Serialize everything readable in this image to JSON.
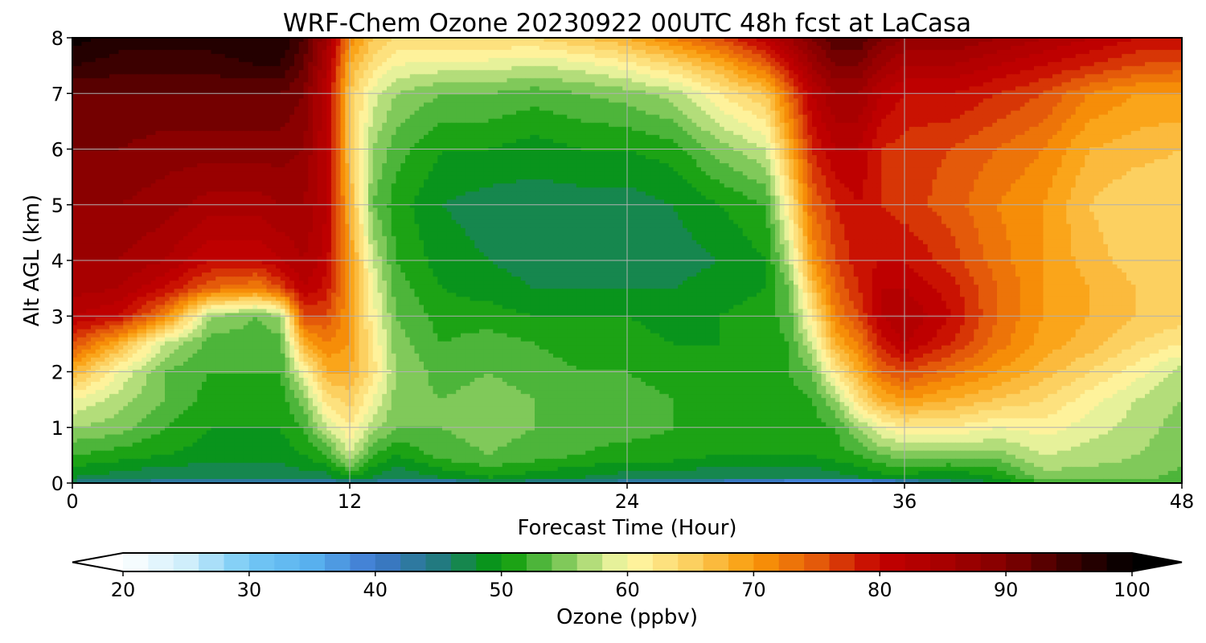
{
  "chart_data": {
    "type": "heatmap",
    "subtype": "filled-contour time-height cross-section",
    "title": "WRF-Chem Ozone  20230922 00UTC 48h fcst at LaCasa",
    "xlabel": "Forecast Time (Hour)",
    "ylabel": "Alt AGL (km)",
    "xlim": [
      0,
      48
    ],
    "ylim": [
      0,
      8
    ],
    "xticks": [
      0,
      12,
      24,
      36,
      48
    ],
    "yticks": [
      0,
      1,
      2,
      3,
      4,
      5,
      6,
      7,
      8
    ],
    "grid": true,
    "colorbar": {
      "label": "Ozone  (ppbv)",
      "orientation": "horizontal",
      "placement": "bottom",
      "range": [
        20,
        100
      ],
      "ticks": [
        20,
        30,
        40,
        50,
        60,
        70,
        80,
        90,
        100
      ],
      "extend": "both",
      "color_stops": [
        {
          "value": 20,
          "color": "#ffffff"
        },
        {
          "value": 25,
          "color": "#cfeefb"
        },
        {
          "value": 30,
          "color": "#73c8f5"
        },
        {
          "value": 35,
          "color": "#58b0ee"
        },
        {
          "value": 40,
          "color": "#3f78d0"
        },
        {
          "value": 45,
          "color": "#227a80"
        },
        {
          "value": 50,
          "color": "#039a03"
        },
        {
          "value": 53,
          "color": "#4db53a"
        },
        {
          "value": 56,
          "color": "#99d36a"
        },
        {
          "value": 60,
          "color": "#fffbaa"
        },
        {
          "value": 65,
          "color": "#fcd060"
        },
        {
          "value": 70,
          "color": "#fa9a08"
        },
        {
          "value": 75,
          "color": "#e45a0a"
        },
        {
          "value": 80,
          "color": "#c40000"
        },
        {
          "value": 85,
          "color": "#a80000"
        },
        {
          "value": 90,
          "color": "#820000"
        },
        {
          "value": 95,
          "color": "#3c0000"
        },
        {
          "value": 100,
          "color": "#000000"
        }
      ]
    },
    "x": [
      0,
      2,
      4,
      6,
      8,
      9,
      10,
      11,
      12,
      13,
      14,
      16,
      18,
      20,
      22,
      24,
      26,
      28,
      30,
      31,
      32,
      33,
      34,
      35,
      36,
      38,
      40,
      42,
      44,
      46,
      48
    ],
    "y": [
      0,
      0.1,
      0.5,
      1,
      1.5,
      2,
      2.5,
      3,
      3.5,
      4,
      5,
      6,
      7,
      7.5,
      8
    ],
    "z": [
      [
        45,
        48,
        52,
        56,
        60,
        68,
        76,
        82,
        85,
        86,
        88,
        90,
        92,
        96,
        99
      ],
      [
        44,
        47,
        51,
        55,
        57,
        60,
        68,
        80,
        84,
        86,
        88,
        90,
        92,
        95,
        97
      ],
      [
        42,
        46,
        50,
        52,
        54,
        54,
        58,
        72,
        80,
        84,
        87,
        89,
        92,
        95,
        97
      ],
      [
        42,
        46,
        49,
        50,
        51,
        52,
        53,
        56,
        74,
        80,
        85,
        89,
        92,
        95,
        97
      ],
      [
        42,
        46,
        49,
        50,
        51,
        52,
        53,
        54,
        72,
        80,
        85,
        89,
        92,
        96,
        98
      ],
      [
        42,
        46,
        49,
        50,
        51,
        52,
        53,
        56,
        76,
        82,
        86,
        89,
        92,
        96,
        98
      ],
      [
        41,
        47,
        50,
        52,
        55,
        60,
        68,
        76,
        82,
        84,
        86,
        88,
        90,
        92,
        94
      ],
      [
        41,
        47,
        52,
        58,
        63,
        68,
        72,
        76,
        79,
        81,
        82,
        82,
        82,
        84,
        86
      ],
      [
        42,
        50,
        58,
        62,
        65,
        68,
        70,
        70,
        70,
        70,
        68,
        66,
        66,
        68,
        72
      ],
      [
        42,
        48,
        52,
        57,
        60,
        63,
        62,
        61,
        60,
        58,
        54,
        56,
        59,
        63,
        66
      ],
      [
        41,
        46,
        50,
        54,
        55,
        56,
        55,
        54,
        53,
        52,
        51,
        53,
        56,
        60,
        64
      ],
      [
        40,
        48,
        53,
        54,
        54,
        53,
        52,
        51,
        50,
        49,
        48,
        50,
        54,
        59,
        64
      ],
      [
        45,
        50,
        54,
        55,
        55,
        54,
        53,
        51,
        49,
        48,
        47,
        50,
        54,
        59,
        64
      ],
      [
        44,
        49,
        53,
        54,
        54,
        53,
        52,
        50,
        48,
        47,
        47,
        49,
        53,
        58,
        64
      ],
      [
        43,
        48,
        52,
        53,
        53,
        52,
        51,
        50,
        48,
        46,
        47,
        50,
        54,
        59,
        66
      ],
      [
        42,
        47,
        51,
        53,
        53,
        52,
        51,
        50,
        48,
        46,
        47,
        50,
        55,
        61,
        68
      ],
      [
        41,
        47,
        51,
        52,
        52,
        51,
        50,
        49,
        48,
        47,
        48,
        51,
        57,
        64,
        72
      ],
      [
        40,
        46,
        50,
        51,
        51,
        51,
        50,
        50,
        49,
        48,
        50,
        55,
        62,
        68,
        76
      ],
      [
        38,
        46,
        50,
        51,
        51,
        51,
        51,
        51,
        50,
        50,
        52,
        58,
        66,
        74,
        82
      ],
      [
        36,
        46,
        50,
        51,
        51,
        52,
        52,
        53,
        54,
        57,
        62,
        68,
        74,
        80,
        86
      ],
      [
        34,
        46,
        50,
        51,
        52,
        54,
        58,
        62,
        66,
        70,
        74,
        78,
        82,
        86,
        90
      ],
      [
        34,
        47,
        51,
        52,
        56,
        62,
        68,
        72,
        74,
        76,
        78,
        82,
        86,
        90,
        94
      ],
      [
        34,
        48,
        52,
        56,
        63,
        68,
        72,
        76,
        78,
        79,
        80,
        82,
        86,
        90,
        94
      ],
      [
        36,
        49,
        54,
        60,
        68,
        74,
        79,
        82,
        82,
        80,
        78,
        78,
        82,
        86,
        90
      ],
      [
        40,
        49,
        55,
        62,
        70,
        76,
        82,
        84,
        82,
        80,
        77,
        77,
        80,
        84,
        88
      ],
      [
        45,
        48,
        55,
        62,
        68,
        73,
        78,
        80,
        79,
        77,
        75,
        76,
        80,
        84,
        88
      ],
      [
        48,
        50,
        55,
        60,
        66,
        70,
        73,
        74,
        74,
        73,
        72,
        74,
        78,
        82,
        86
      ],
      [
        52,
        55,
        58,
        61,
        64,
        67,
        69,
        70,
        70,
        70,
        70,
        72,
        76,
        80,
        84
      ],
      [
        53,
        55,
        57,
        59,
        61,
        64,
        67,
        68,
        68,
        67,
        66,
        68,
        72,
        78,
        82
      ],
      [
        53,
        55,
        56,
        57,
        58,
        61,
        64,
        66,
        66,
        65,
        64,
        67,
        70,
        76,
        80
      ],
      [
        52,
        53,
        55,
        55,
        56,
        57,
        62,
        65,
        66,
        65,
        64,
        66,
        70,
        75,
        80
      ]
    ]
  }
}
